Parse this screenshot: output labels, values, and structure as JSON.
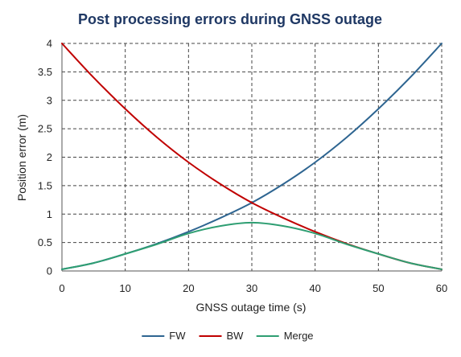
{
  "chart_data": {
    "type": "line",
    "title": "Post processing  errors during GNSS outage",
    "xlabel": "GNSS outage time (s)",
    "ylabel": "Position error (m)",
    "xlim": [
      0,
      60
    ],
    "ylim": [
      0,
      4
    ],
    "x_ticks": [
      0,
      10,
      20,
      30,
      40,
      50,
      60
    ],
    "y_ticks": [
      0,
      0.5,
      1,
      1.5,
      2,
      2.5,
      3,
      3.5,
      4
    ],
    "x_tick_labels": [
      "0",
      "10",
      "20",
      "30",
      "40",
      "50",
      "60"
    ],
    "y_tick_labels": [
      "0",
      "0.5",
      "1",
      "1.5",
      "2",
      "2.5",
      "3",
      "3.5",
      "4"
    ],
    "grid": "dashed vertical and horizontal",
    "legend_position": "bottom",
    "x": [
      0,
      5,
      10,
      15,
      20,
      25,
      30,
      35,
      40,
      45,
      50,
      55,
      60
    ],
    "series": [
      {
        "name": "FW",
        "color": "#2e6591",
        "values": [
          0.03,
          0.14,
          0.3,
          0.48,
          0.69,
          0.93,
          1.2,
          1.53,
          1.91,
          2.35,
          2.85,
          3.4,
          4.0
        ]
      },
      {
        "name": "BW",
        "color": "#c00000",
        "values": [
          4.0,
          3.4,
          2.85,
          2.35,
          1.91,
          1.53,
          1.2,
          0.93,
          0.69,
          0.48,
          0.3,
          0.14,
          0.03
        ]
      },
      {
        "name": "Merge",
        "color": "#2e9e72",
        "values": [
          0.03,
          0.14,
          0.3,
          0.47,
          0.66,
          0.79,
          0.85,
          0.79,
          0.66,
          0.47,
          0.3,
          0.14,
          0.03
        ]
      }
    ]
  }
}
